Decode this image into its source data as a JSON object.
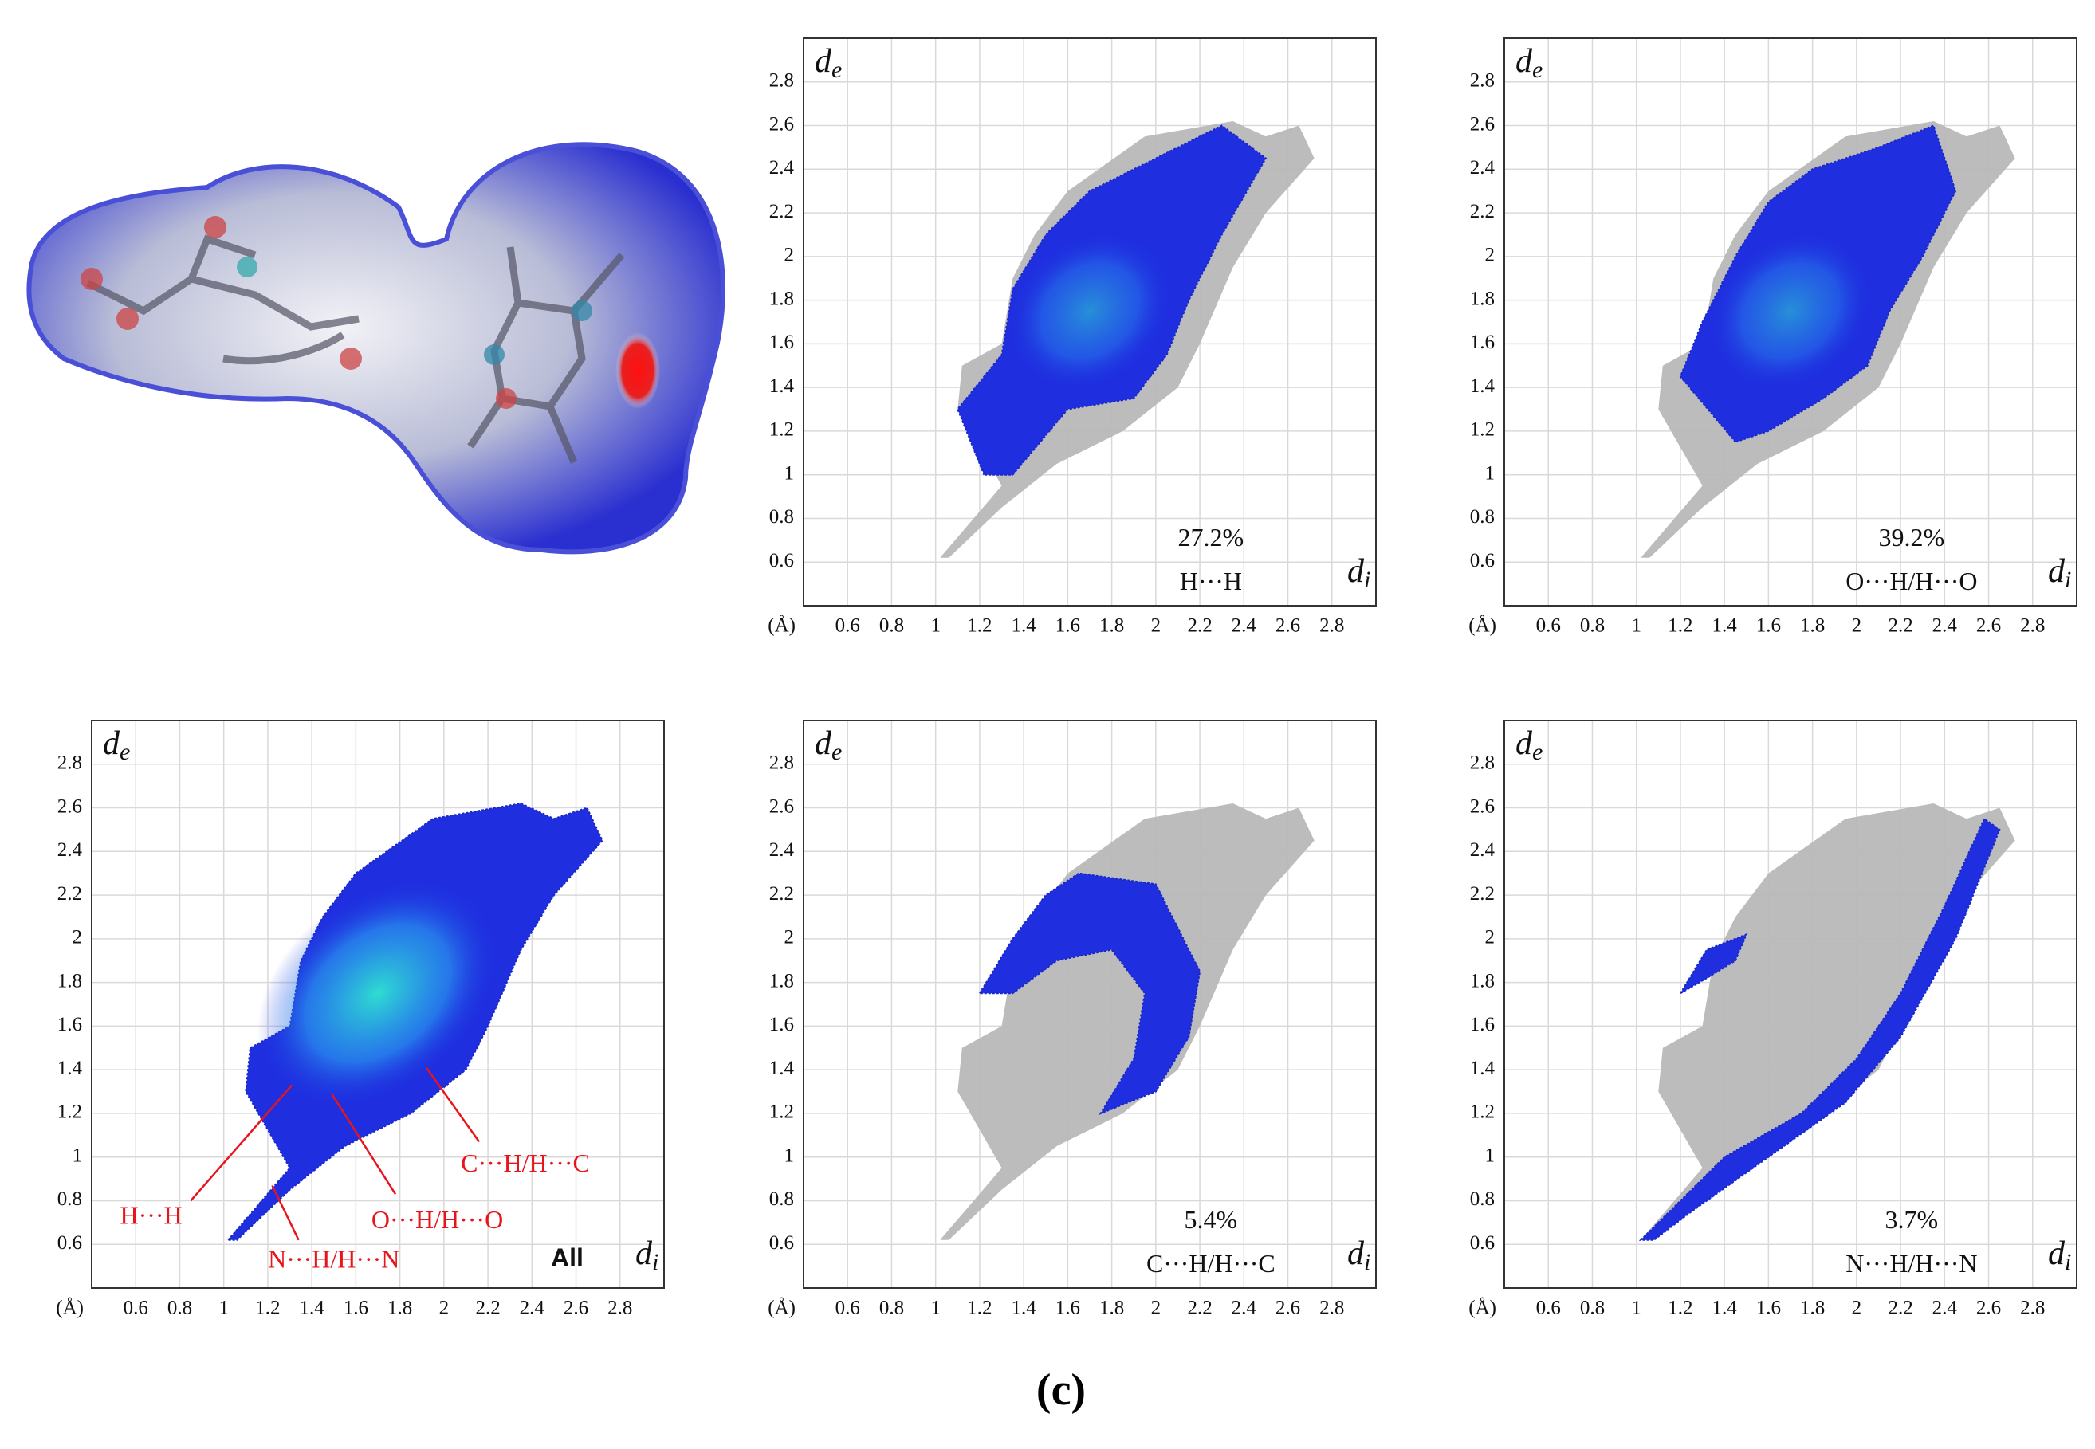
{
  "figure_label": "(c)",
  "chart_data": [
    {
      "type": "fingerprint",
      "x_label": "di",
      "y_label": "de",
      "x_unit": "(Å)",
      "xlim": [
        0.4,
        3.0
      ],
      "ylim": [
        0.4,
        3.0
      ],
      "xticks": [
        0.6,
        0.8,
        1.0,
        1.2,
        1.4,
        1.6,
        1.8,
        2.0,
        2.2,
        2.4,
        2.6,
        2.8
      ],
      "yticks": [
        0.6,
        0.8,
        1.0,
        1.2,
        1.4,
        1.6,
        1.8,
        2.0,
        2.2,
        2.4,
        2.6,
        2.8
      ],
      "grid": true,
      "contact": "H···H",
      "percent_label": "27.2%"
    },
    {
      "type": "fingerprint",
      "x_label": "di",
      "y_label": "de",
      "x_unit": "(Å)",
      "xlim": [
        0.4,
        3.0
      ],
      "ylim": [
        0.4,
        3.0
      ],
      "xticks": [
        0.6,
        0.8,
        1.0,
        1.2,
        1.4,
        1.6,
        1.8,
        2.0,
        2.2,
        2.4,
        2.6,
        2.8
      ],
      "yticks": [
        0.6,
        0.8,
        1.0,
        1.2,
        1.4,
        1.6,
        1.8,
        2.0,
        2.2,
        2.4,
        2.6,
        2.8
      ],
      "grid": true,
      "contact": "O···H/H···O",
      "percent_label": "39.2%"
    },
    {
      "type": "fingerprint",
      "x_label": "di",
      "y_label": "de",
      "x_unit": "(Å)",
      "xlim": [
        0.4,
        3.0
      ],
      "ylim": [
        0.4,
        3.0
      ],
      "xticks": [
        0.6,
        0.8,
        1.0,
        1.2,
        1.4,
        1.6,
        1.8,
        2.0,
        2.2,
        2.4,
        2.6,
        2.8
      ],
      "yticks": [
        0.6,
        0.8,
        1.0,
        1.2,
        1.4,
        1.6,
        1.8,
        2.0,
        2.2,
        2.4,
        2.6,
        2.8
      ],
      "grid": true,
      "contact": "All",
      "annotations": [
        "H···H",
        "N···H/H···N",
        "O···H/H···O",
        "C···H/H···C"
      ]
    },
    {
      "type": "fingerprint",
      "x_label": "di",
      "y_label": "de",
      "x_unit": "(Å)",
      "xlim": [
        0.4,
        3.0
      ],
      "ylim": [
        0.4,
        3.0
      ],
      "xticks": [
        0.6,
        0.8,
        1.0,
        1.2,
        1.4,
        1.6,
        1.8,
        2.0,
        2.2,
        2.4,
        2.6,
        2.8
      ],
      "yticks": [
        0.6,
        0.8,
        1.0,
        1.2,
        1.4,
        1.6,
        1.8,
        2.0,
        2.2,
        2.4,
        2.6,
        2.8
      ],
      "grid": true,
      "contact": "C···H/H···C",
      "percent_label": "5.4%"
    },
    {
      "type": "fingerprint",
      "x_label": "di",
      "y_label": "de",
      "x_unit": "(Å)",
      "xlim": [
        0.4,
        3.0
      ],
      "ylim": [
        0.4,
        3.0
      ],
      "xticks": [
        0.6,
        0.8,
        1.0,
        1.2,
        1.4,
        1.6,
        1.8,
        2.0,
        2.2,
        2.4,
        2.6,
        2.8
      ],
      "yticks": [
        0.6,
        0.8,
        1.0,
        1.2,
        1.4,
        1.6,
        1.8,
        2.0,
        2.2,
        2.4,
        2.6,
        2.8
      ],
      "grid": true,
      "contact": "N···H/H···N",
      "percent_label": "3.7%"
    }
  ]
}
